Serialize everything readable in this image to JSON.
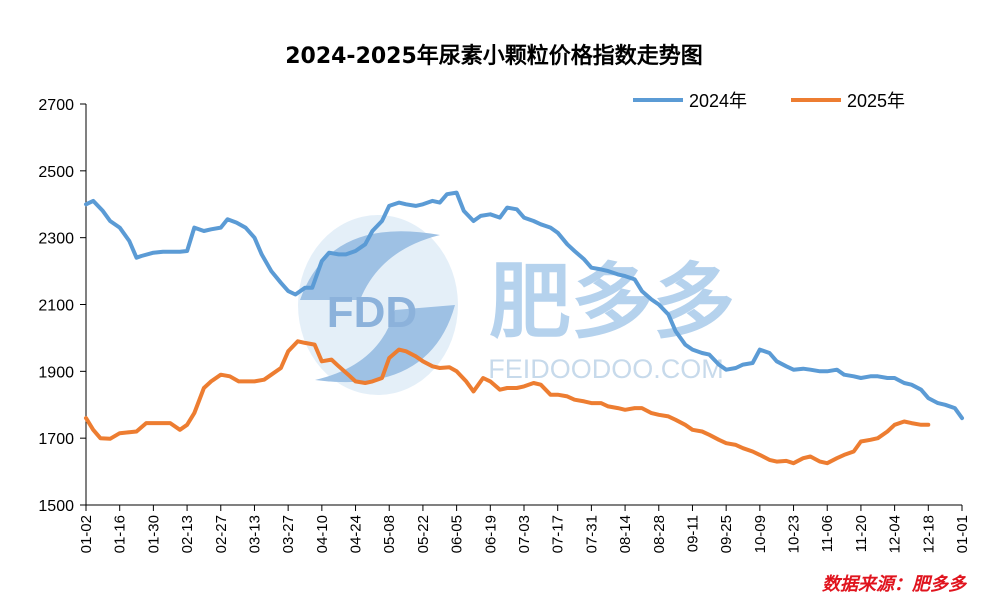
{
  "chart_data": {
    "type": "line",
    "title": "2024-2025年尿素小颗粒价格指数走势图",
    "source": "数据来源：肥多多",
    "xlabel": "",
    "ylabel": "",
    "ylim": [
      1500,
      2700
    ],
    "yticks": [
      "1500",
      "1700",
      "1900",
      "2100",
      "2300",
      "2500",
      "2700"
    ],
    "xticks": [
      "01-02",
      "01-16",
      "01-30",
      "02-13",
      "02-27",
      "03-13",
      "03-27",
      "04-10",
      "04-24",
      "05-08",
      "05-22",
      "06-05",
      "06-19",
      "07-03",
      "07-17",
      "07-31",
      "08-14",
      "08-28",
      "09-11",
      "09-25",
      "10-09",
      "10-23",
      "11-06",
      "11-20",
      "12-04",
      "12-18",
      "01-01"
    ],
    "grid": false,
    "legend_position": "top-right",
    "colors": {
      "2024年": "#5b9bd5",
      "2025年": "#ed7d31"
    },
    "series": [
      {
        "name": "2024年",
        "x": [
          "01-02",
          "01-05",
          "01-09",
          "01-12",
          "01-16",
          "01-20",
          "01-23",
          "01-25",
          "01-30",
          "02-03",
          "02-06",
          "02-10",
          "02-13",
          "02-16",
          "02-20",
          "02-23",
          "02-27",
          "03-01",
          "03-05",
          "03-09",
          "03-13",
          "03-16",
          "03-20",
          "03-24",
          "03-27",
          "03-30",
          "04-03",
          "04-06",
          "04-10",
          "04-13",
          "04-17",
          "04-20",
          "04-24",
          "04-28",
          "05-01",
          "05-05",
          "05-08",
          "05-12",
          "05-15",
          "05-19",
          "05-22",
          "05-26",
          "05-29",
          "06-01",
          "06-05",
          "06-08",
          "06-12",
          "06-15",
          "06-19",
          "06-23",
          "06-26",
          "06-30",
          "07-03",
          "07-07",
          "07-10",
          "07-14",
          "07-17",
          "07-21",
          "07-24",
          "07-28",
          "07-31",
          "08-04",
          "08-07",
          "08-11",
          "08-14",
          "08-18",
          "08-21",
          "08-25",
          "08-28",
          "09-01",
          "09-04",
          "09-08",
          "09-11",
          "09-15",
          "09-18",
          "09-22",
          "09-25",
          "09-29",
          "10-02",
          "10-06",
          "10-09",
          "10-13",
          "10-16",
          "10-20",
          "10-23",
          "10-27",
          "10-30",
          "11-03",
          "11-06",
          "11-10",
          "11-13",
          "11-17",
          "11-20",
          "11-24",
          "11-27",
          "12-01",
          "12-04",
          "12-08",
          "12-11",
          "12-15",
          "12-18",
          "12-22",
          "12-25",
          "12-29",
          "01-01"
        ],
        "values": [
          2400,
          2410,
          2380,
          2350,
          2330,
          2290,
          2240,
          2245,
          2255,
          2258,
          2258,
          2258,
          2260,
          2330,
          2320,
          2325,
          2330,
          2355,
          2345,
          2330,
          2300,
          2250,
          2200,
          2165,
          2140,
          2130,
          2150,
          2150,
          2230,
          2255,
          2250,
          2250,
          2260,
          2280,
          2320,
          2350,
          2395,
          2405,
          2400,
          2395,
          2400,
          2410,
          2405,
          2430,
          2435,
          2380,
          2350,
          2365,
          2370,
          2360,
          2390,
          2385,
          2360,
          2350,
          2340,
          2330,
          2315,
          2280,
          2260,
          2235,
          2210,
          2205,
          2200,
          2190,
          2185,
          2175,
          2140,
          2115,
          2100,
          2070,
          2020,
          1980,
          1965,
          1955,
          1950,
          1920,
          1905,
          1910,
          1920,
          1925,
          1965,
          1955,
          1930,
          1915,
          1905,
          1908,
          1905,
          1900,
          1900,
          1905,
          1890,
          1885,
          1880,
          1885,
          1885,
          1880,
          1880,
          1865,
          1860,
          1845,
          1820,
          1805,
          1800,
          1790,
          1760
        ]
      },
      {
        "name": "2025年",
        "x": [
          "01-02",
          "01-05",
          "01-08",
          "01-12",
          "01-16",
          "01-20",
          "01-23",
          "01-27",
          "01-30",
          "02-03",
          "02-06",
          "02-10",
          "02-13",
          "02-16",
          "02-20",
          "02-23",
          "02-27",
          "03-02",
          "03-06",
          "03-10",
          "03-13",
          "03-17",
          "03-20",
          "03-24",
          "03-27",
          "03-31",
          "04-03",
          "04-07",
          "04-10",
          "04-14",
          "04-17",
          "04-21",
          "04-24",
          "04-28",
          "05-01",
          "05-05",
          "05-08",
          "05-12",
          "05-15",
          "05-19",
          "05-22",
          "05-26",
          "05-29",
          "06-02",
          "06-05",
          "06-09",
          "06-12",
          "06-16",
          "06-19",
          "06-23",
          "06-26",
          "06-30",
          "07-03",
          "07-07",
          "07-10",
          "07-14",
          "07-17",
          "07-21",
          "07-24",
          "07-28",
          "07-31",
          "08-04",
          "08-07",
          "08-11",
          "08-14",
          "08-18",
          "08-21",
          "08-25",
          "08-28",
          "09-01",
          "09-04",
          "09-08",
          "09-11",
          "09-15",
          "09-18",
          "09-22",
          "09-25",
          "09-29",
          "10-02",
          "10-06",
          "10-09",
          "10-13",
          "10-16",
          "10-20",
          "10-23",
          "10-27",
          "10-30",
          "11-03",
          "11-06",
          "11-10",
          "11-13",
          "11-17",
          "11-20",
          "11-24",
          "11-27",
          "12-01",
          "12-04",
          "12-08",
          "12-11",
          "12-15",
          "12-18"
        ],
        "values": [
          1760,
          1725,
          1700,
          1698,
          1715,
          1718,
          1720,
          1745,
          1745,
          1745,
          1745,
          1725,
          1740,
          1775,
          1850,
          1870,
          1890,
          1885,
          1870,
          1870,
          1870,
          1875,
          1890,
          1910,
          1960,
          1990,
          1985,
          1980,
          1930,
          1935,
          1915,
          1890,
          1870,
          1865,
          1870,
          1880,
          1940,
          1965,
          1960,
          1945,
          1930,
          1915,
          1910,
          1912,
          1900,
          1870,
          1840,
          1880,
          1870,
          1845,
          1850,
          1850,
          1855,
          1865,
          1860,
          1830,
          1830,
          1825,
          1815,
          1810,
          1805,
          1805,
          1795,
          1790,
          1785,
          1790,
          1790,
          1775,
          1770,
          1765,
          1755,
          1740,
          1725,
          1720,
          1710,
          1695,
          1685,
          1680,
          1670,
          1660,
          1650,
          1635,
          1630,
          1632,
          1625,
          1640,
          1645,
          1630,
          1625,
          1640,
          1650,
          1660,
          1690,
          1695,
          1700,
          1720,
          1740,
          1750,
          1745,
          1740,
          1740
        ]
      }
    ]
  },
  "watermark": {
    "mark": "FDD",
    "brand": "肥多多",
    "url": "FEIDOODOO.COM"
  }
}
